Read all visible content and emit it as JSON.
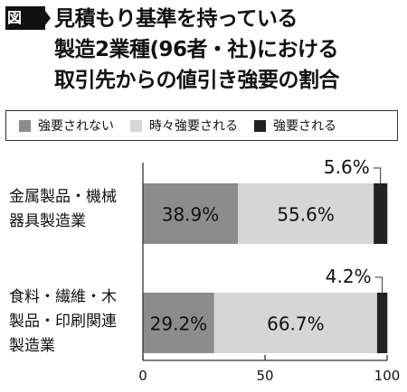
{
  "header": {
    "badge": "図",
    "title_lines": [
      "見積もり基準を持っている",
      "製造2業種(96者・社)における",
      "取引先からの値引き強要の割合"
    ]
  },
  "colors": {
    "not_forced": "#8c8c8c",
    "sometimes": "#d6d6d6",
    "forced": "#222222",
    "axis": "#333333"
  },
  "chart_data": {
    "type": "bar",
    "orientation": "horizontal",
    "stacked": true,
    "categories": [
      [
        "金属製品・機械",
        "器具製造業"
      ],
      [
        "食料・繊維・木",
        "製品・印刷関連",
        "製造業"
      ]
    ],
    "series": [
      {
        "name": "強要されない",
        "values": [
          38.9,
          29.2
        ],
        "labels": [
          "38.9%",
          "29.2%"
        ]
      },
      {
        "name": "時々強要される",
        "values": [
          55.6,
          66.7
        ],
        "labels": [
          "55.6%",
          "66.7%"
        ]
      },
      {
        "name": "強要される",
        "values": [
          5.6,
          4.2
        ],
        "labels": [
          "5.6%",
          "4.2%"
        ]
      }
    ],
    "xlim": [
      0,
      100
    ],
    "xticks": [
      "0",
      "50",
      "100"
    ],
    "legend_position": "top",
    "grid": false
  }
}
